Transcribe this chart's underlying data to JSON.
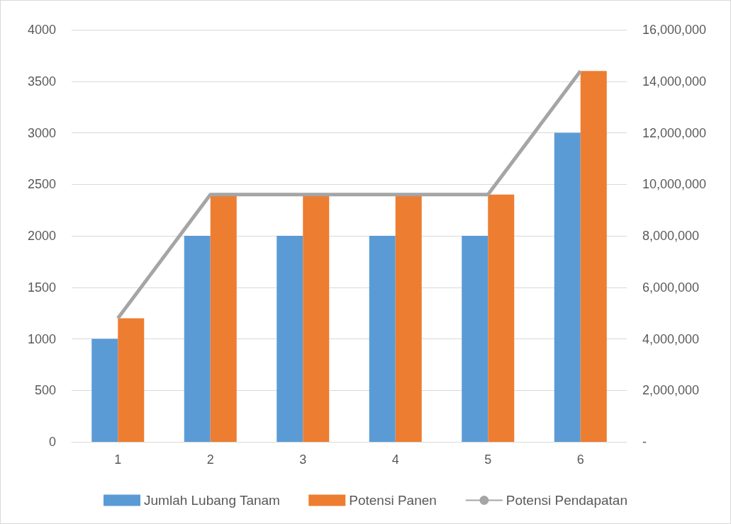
{
  "chart_data": {
    "type": "bar",
    "categories": [
      "1",
      "2",
      "3",
      "4",
      "5",
      "6"
    ],
    "series": [
      {
        "name": "Jumlah Lubang Tanam",
        "color": "#5b9bd5",
        "values": [
          1000,
          2000,
          2000,
          2000,
          2000,
          3000
        ]
      },
      {
        "name": "Potensi Panen",
        "color": "#ed7d31",
        "values": [
          1200,
          2400,
          2400,
          2400,
          2400,
          3600
        ]
      },
      {
        "name": "Potensi Pendapatan",
        "type": "line",
        "axis": "y2",
        "color": "#a5a5a5",
        "values": [
          4800000,
          9600000,
          9600000,
          9600000,
          9600000,
          14400000
        ]
      }
    ],
    "ylim": [
      0,
      4000
    ],
    "yticks": [
      0,
      500,
      1000,
      1500,
      2000,
      2500,
      3000,
      3500,
      4000
    ],
    "y2lim": [
      0,
      16000000
    ],
    "y2ticks": [
      {
        "value": 0,
        "label": "-"
      },
      {
        "value": 2000000,
        "label": "2,000,000"
      },
      {
        "value": 4000000,
        "label": "4,000,000"
      },
      {
        "value": 6000000,
        "label": "6,000,000"
      },
      {
        "value": 8000000,
        "label": "8,000,000"
      },
      {
        "value": 10000000,
        "label": "10,000,000"
      },
      {
        "value": 12000000,
        "label": "12,000,000"
      },
      {
        "value": 14000000,
        "label": "14,000,000"
      },
      {
        "value": 16000000,
        "label": "16,000,000"
      }
    ],
    "grid": "y",
    "legend": "bottom",
    "marker": "none"
  }
}
